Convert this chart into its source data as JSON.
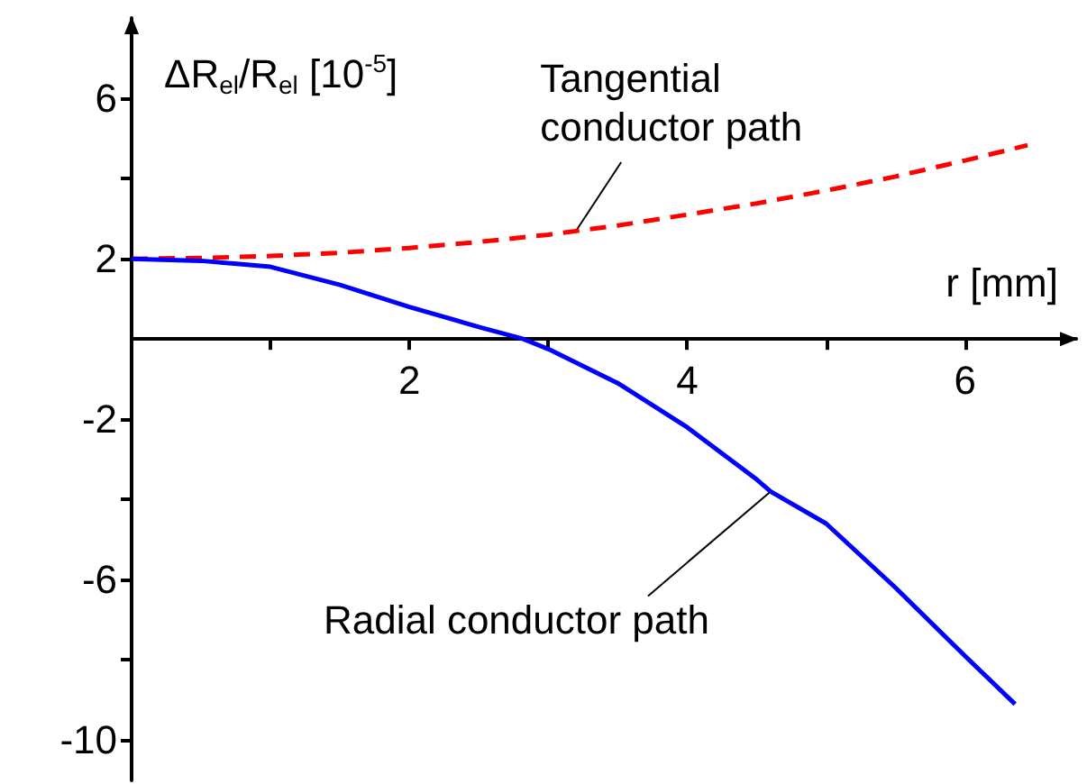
{
  "chart_data": {
    "type": "line",
    "xlabel": "r [mm]",
    "ylabel": "ΔR$_{el}$/R$_{el}$ [10$^{-5}$]",
    "xlim": [
      0,
      6.8
    ],
    "ylim": [
      -11,
      8
    ],
    "xticks": [
      {
        "value": 1,
        "label": null
      },
      2,
      {
        "value": 3,
        "label": null
      },
      4,
      {
        "value": 5,
        "label": null
      },
      6
    ],
    "yticks": [
      -10,
      {
        "value": -8,
        "label": null
      },
      -6,
      {
        "value": -4,
        "label": null
      },
      -2,
      2,
      {
        "value": 4,
        "label": null
      },
      6
    ],
    "grid": false,
    "marker": "none",
    "series": [
      {
        "color": "#ff0000",
        "line_style": "dashed",
        "x": [
          0,
          0.5,
          1,
          1.5,
          2,
          2.5,
          3,
          3.5,
          4,
          4.5,
          5,
          5.5,
          6,
          6.45
        ],
        "values": [
          2,
          2.02,
          2.07,
          2.15,
          2.27,
          2.42,
          2.6,
          2.83,
          3.1,
          3.38,
          3.7,
          4.05,
          4.45,
          4.83
        ]
      },
      {
        "color": "#0000ff",
        "line_style": "solid",
        "x": [
          0,
          0.5,
          1,
          1.5,
          2,
          2.5,
          2.82,
          3,
          3.5,
          4,
          4.5,
          4.6,
          5,
          5.5,
          6,
          6.36
        ],
        "values": [
          2,
          1.95,
          1.8,
          1.35,
          0.8,
          0.3,
          0,
          -0.25,
          -1.1,
          -2.2,
          -3.5,
          -3.8,
          -4.6,
          -6.2,
          -7.9,
          -9.1
        ]
      }
    ],
    "annotations": [
      {
        "text": "Tangential conductor path",
        "x": 3.2,
        "y": 2.7
      },
      {
        "text": "Radial conductor path",
        "x": 4.6,
        "y": -3.8
      }
    ]
  }
}
